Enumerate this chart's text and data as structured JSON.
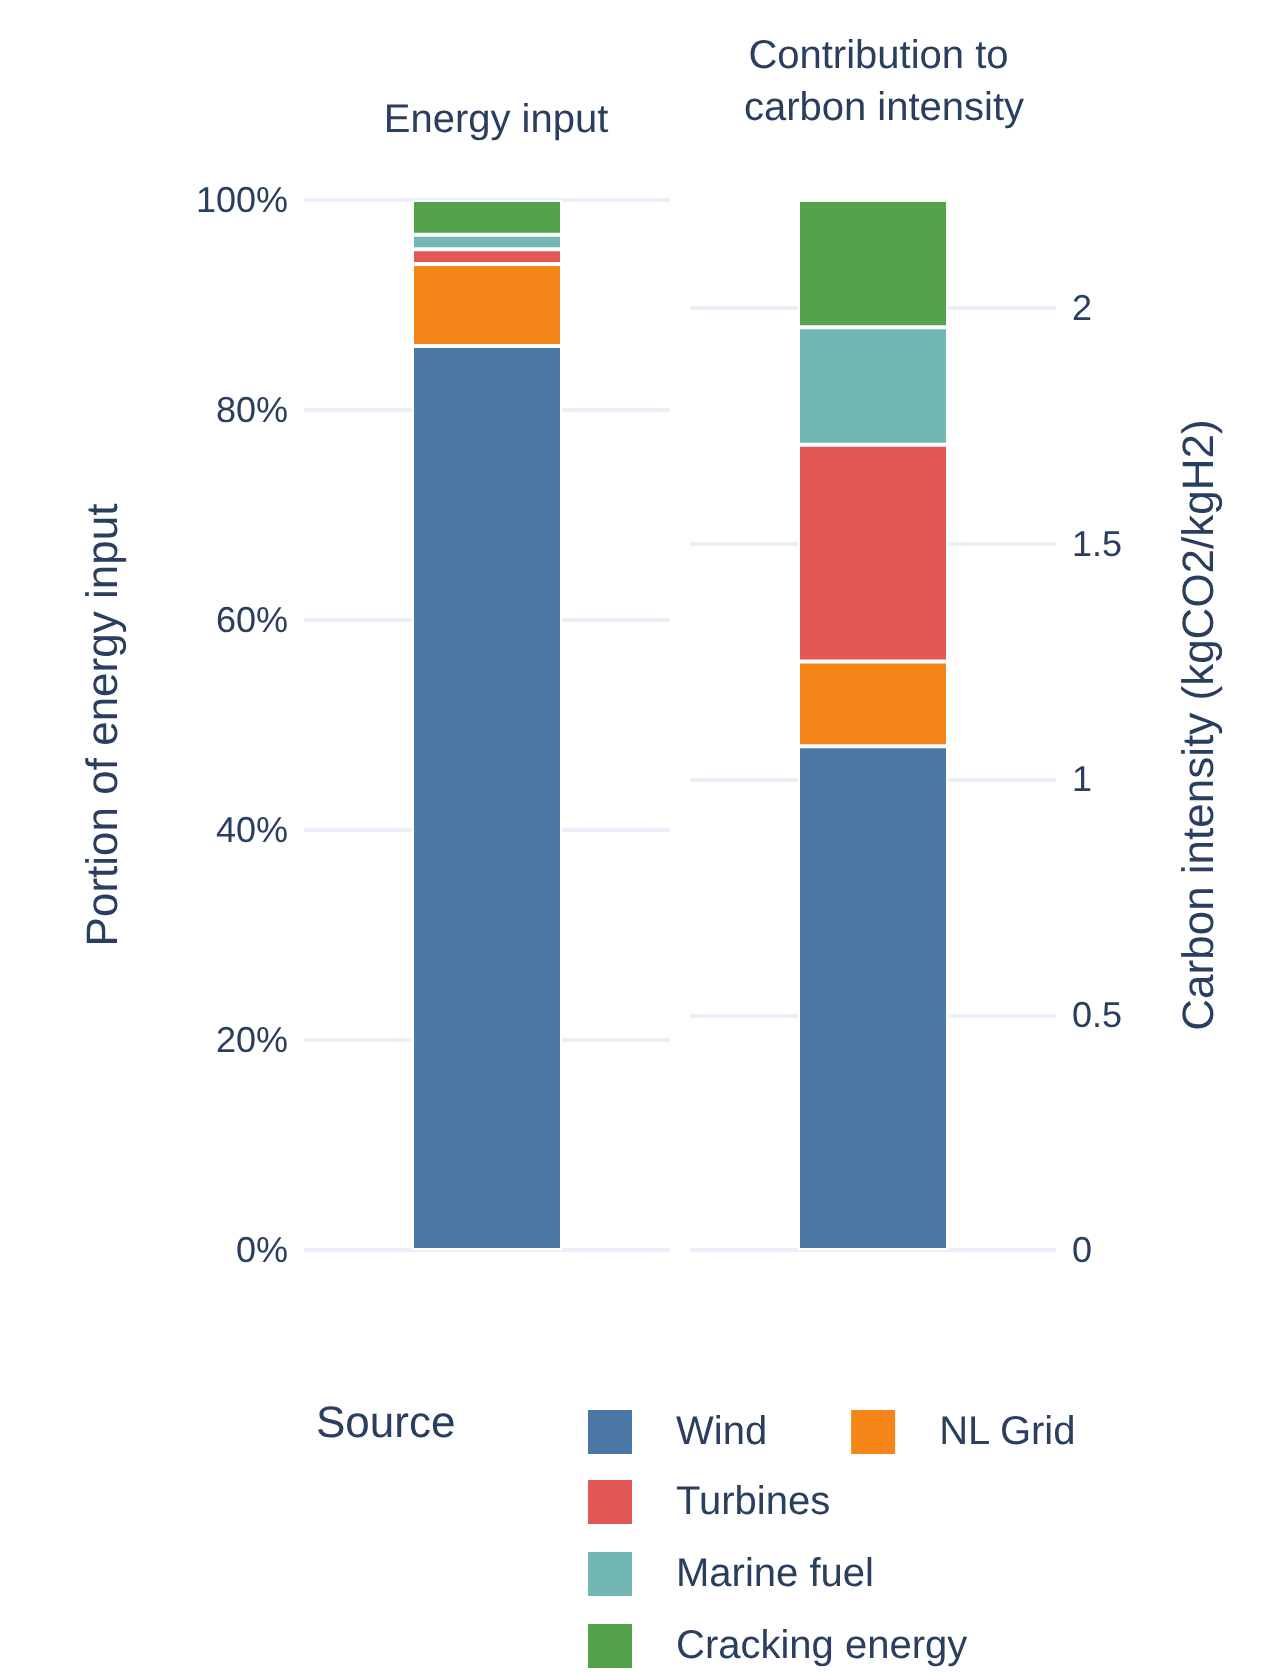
{
  "chart_data": [
    {
      "type": "bar",
      "title": "Energy input",
      "ylabel": "Portion of energy input",
      "legend_title": "Source",
      "categories": [
        null
      ],
      "stacked": true,
      "ylim": [
        0,
        100
      ],
      "yticks": [
        {
          "value": 0,
          "label": "0%"
        },
        {
          "value": 20,
          "label": "20%"
        },
        {
          "value": 40,
          "label": "40%"
        },
        {
          "value": 60,
          "label": "60%"
        },
        {
          "value": 80,
          "label": "80%"
        },
        {
          "value": 100,
          "label": "100%"
        }
      ],
      "grid": "y",
      "legend": "bottom",
      "series": [
        {
          "name": "Wind",
          "color": "#4c78a8",
          "values": [
            86.1
          ]
        },
        {
          "name": "NL Grid",
          "color": "#f58518",
          "values": [
            7.8
          ]
        },
        {
          "name": "Turbines",
          "color": "#e45756",
          "values": [
            1.4
          ]
        },
        {
          "name": "Marine fuel",
          "color": "#72b7b2",
          "values": [
            1.4
          ]
        },
        {
          "name": "Cracking energy",
          "color": "#54a24b",
          "values": [
            3.3
          ]
        }
      ]
    },
    {
      "type": "bar",
      "title": "Contribution to carbon intensity",
      "ylabel": "Carbon intensity (kgCO2/kgH2)",
      "categories": [
        null
      ],
      "stacked": true,
      "ylim": [
        0,
        2.23
      ],
      "yticks": [
        0,
        0.5,
        1,
        1.5,
        2
      ],
      "grid": "y",
      "series": [
        {
          "color": "#4c78a8",
          "values": [
            1.07
          ]
        },
        {
          "color": "#f58518",
          "values": [
            0.18
          ]
        },
        {
          "color": "#e45756",
          "values": [
            0.46
          ]
        },
        {
          "color": "#72b7b2",
          "values": [
            0.25
          ]
        },
        {
          "color": "#54a24b",
          "values": [
            0.27
          ]
        }
      ]
    }
  ]
}
